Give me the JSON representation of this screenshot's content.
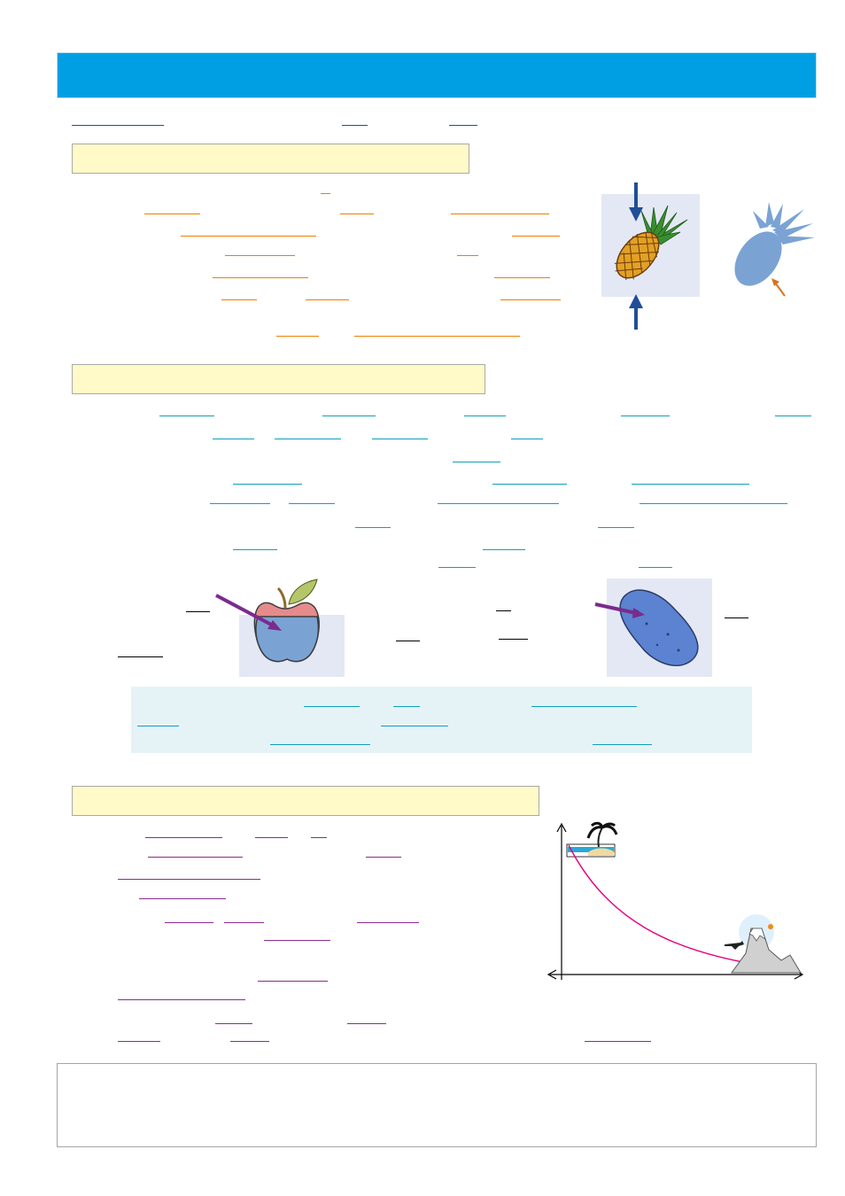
{
  "header": {
    "title": ""
  },
  "sections": [
    {
      "heading": ""
    },
    {
      "heading": ""
    },
    {
      "heading": ""
    }
  ],
  "colors": {
    "header": "#009fe3",
    "section_head_fill": "#fffac8",
    "note_fill": "#e6f3f6",
    "ul_blue": "#1f4e97",
    "ul_orange": "#ee7d00",
    "ul_teal": "#0fa0b8",
    "ul_purple": "#8a2b8e",
    "curve": "#e6007e"
  },
  "icons": [
    "pineapple-icon",
    "pineapple-silhouette-icon",
    "apple-icon",
    "potato-icon",
    "palm-island-icon",
    "volcano-icon",
    "airplane-icon"
  ],
  "summary": {
    "text": ""
  }
}
